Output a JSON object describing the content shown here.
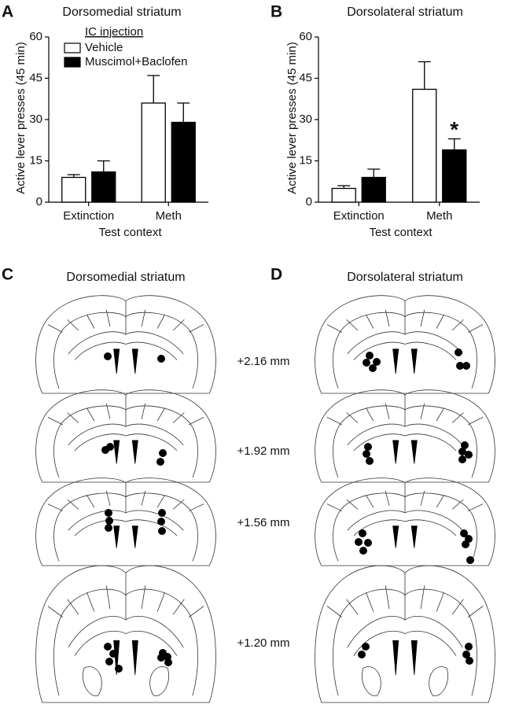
{
  "chart_data": [
    {
      "type": "bar",
      "title": "Dorsomedial striatum",
      "categories": [
        "Extinction",
        "Meth"
      ],
      "series": [
        {
          "name": "Vehicle",
          "color": "#ffffff",
          "values": [
            9,
            36
          ],
          "errors": [
            1,
            10
          ]
        },
        {
          "name": "Muscimol+Baclofen",
          "color": "#000000",
          "values": [
            11,
            29
          ],
          "errors": [
            4,
            7
          ]
        }
      ],
      "ylim": [
        0,
        60
      ],
      "yticks": [
        0,
        15,
        30,
        45,
        60
      ],
      "ylabel": "Active lever presses (45 min)",
      "xlabel": "Test context",
      "legend": "upper left",
      "legend_title": "IC injection"
    },
    {
      "type": "bar",
      "title": "Dorsolateral striatum",
      "categories": [
        "Extinction",
        "Meth"
      ],
      "series": [
        {
          "color": "#ffffff",
          "values": [
            5,
            41
          ],
          "errors": [
            1,
            10
          ]
        },
        {
          "color": "#000000",
          "values": [
            9,
            19
          ],
          "errors": [
            3,
            4
          ]
        }
      ],
      "ylim": [
        0,
        60
      ],
      "yticks": [
        0,
        15,
        30,
        45,
        60
      ],
      "ylabel": "Active lever presses (45 min)",
      "xlabel": "Test context",
      "annotations": [
        "*"
      ]
    }
  ],
  "panel_labels": [
    "A",
    "B",
    "C",
    "D"
  ],
  "atlas": {
    "titles": [
      "Dorsomedial striatum",
      "Dorsolateral striatum"
    ],
    "levels": [
      "+2.16 mm",
      "+1.92 mm",
      "+1.56 mm",
      "+1.20 mm"
    ]
  }
}
